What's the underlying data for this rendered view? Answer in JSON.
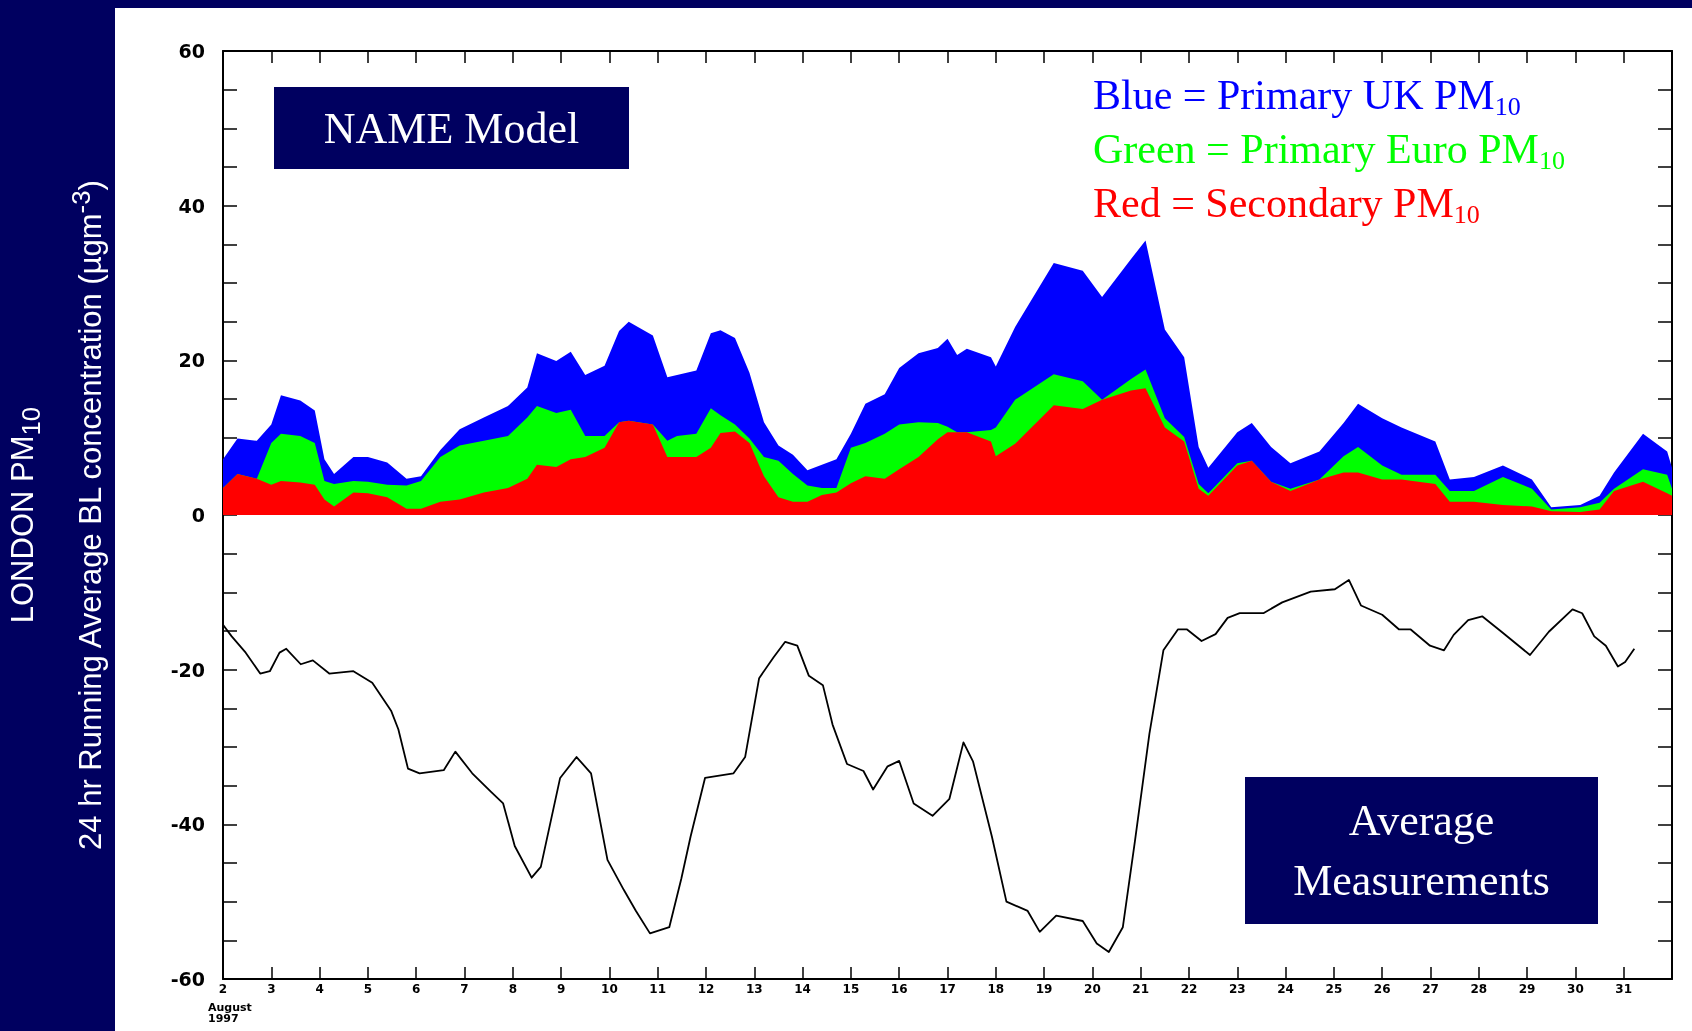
{
  "chart_data": {
    "type": "area",
    "stacked": true,
    "ylabel": "LONDON PM$_{10}$\n24 hr Running Average BL concentration (µgm$^{-3}$)",
    "annotations": [
      "NAME Model",
      "Average Measurements",
      "August\n1997"
    ],
    "x": [
      2.0,
      2.3,
      2.7,
      3.0,
      3.2,
      3.6,
      3.9,
      4.1,
      4.3,
      4.7,
      5.0,
      5.4,
      5.8,
      6.1,
      6.5,
      6.9,
      7.4,
      7.9,
      8.3,
      8.5,
      8.9,
      9.2,
      9.5,
      9.9,
      10.2,
      10.4,
      10.9,
      11.2,
      11.4,
      11.8,
      12.1,
      12.3,
      12.6,
      12.9,
      13.2,
      13.5,
      13.8,
      14.1,
      14.4,
      14.7,
      15.0,
      15.3,
      15.7,
      16.0,
      16.4,
      16.8,
      17.0,
      17.2,
      17.4,
      17.9,
      18.0,
      18.4,
      19.2,
      19.8,
      20.2,
      20.8,
      21.1,
      21.5,
      21.9,
      22.2,
      22.4,
      23.0,
      23.3,
      23.7,
      24.1,
      24.7,
      25.2,
      25.5,
      26.0,
      26.4,
      27.1,
      27.4,
      27.9,
      28.5,
      29.1,
      29.5,
      30.1,
      30.5,
      30.8,
      31.4,
      31.9,
      32.0
    ],
    "series": [
      {
        "name": "Red = Secondary PM$_{10}$",
        "color": "#ff0000",
        "values": [
          3.5,
          5.3,
          4.7,
          3.9,
          4.4,
          4.2,
          3.9,
          2.0,
          1.1,
          2.9,
          2.8,
          2.3,
          0.8,
          0.8,
          1.7,
          2.0,
          2.9,
          3.5,
          4.7,
          6.5,
          6.2,
          7.2,
          7.5,
          8.7,
          12.0,
          12.2,
          11.7,
          7.5,
          7.5,
          7.5,
          8.7,
          10.6,
          10.8,
          9.3,
          5.0,
          2.3,
          1.7,
          1.7,
          2.6,
          2.9,
          4.1,
          5.0,
          4.7,
          5.9,
          7.5,
          9.8,
          10.7,
          10.7,
          10.7,
          9.5,
          7.6,
          9.2,
          14.2,
          13.7,
          14.9,
          16.1,
          16.4,
          11.3,
          9.5,
          3.4,
          2.5,
          6.4,
          7.0,
          4.3,
          3.1,
          4.6,
          5.5,
          5.5,
          4.6,
          4.6,
          4.0,
          1.7,
          1.7,
          1.3,
          1.1,
          0.5,
          0.4,
          0.7,
          3.1,
          4.3,
          2.8,
          2.5
        ]
      },
      {
        "name": "Green = Primary Euro PM$_{10}$",
        "color": "#00ff00",
        "values": [
          0,
          0,
          0,
          5.4,
          6.1,
          6.0,
          5.4,
          2.4,
          2.9,
          1.5,
          1.5,
          1.6,
          3.0,
          3.6,
          5.8,
          7.0,
          6.7,
          6.7,
          7.9,
          7.6,
          7.0,
          6.4,
          2.7,
          1.5,
          0,
          0,
          0,
          2.1,
          2.7,
          3.0,
          5.1,
          2.3,
          0.9,
          0.6,
          2.5,
          4.7,
          3.6,
          2.1,
          0.9,
          0.6,
          4.6,
          4.3,
          5.8,
          5.8,
          4.5,
          2.1,
          0.7,
          0,
          0,
          1.5,
          3.7,
          5.7,
          4.0,
          3.6,
          0,
          1.5,
          2.4,
          1.2,
          0.6,
          0.6,
          0.3,
          0.3,
          0,
          0,
          0.3,
          0,
          2.1,
          3.3,
          1.8,
          0.6,
          1.2,
          1.4,
          1.4,
          3.6,
          2.3,
          0.2,
          0.6,
          0.9,
          0.3,
          1.6,
          2.4,
          0.9
        ]
      },
      {
        "name": "Blue = Primary UK PM$_{10}$",
        "color": "#0000ff",
        "values": [
          3.7,
          4.6,
          4.9,
          2.4,
          5.0,
          4.6,
          4.2,
          2.8,
          1.3,
          3.1,
          3.2,
          2.9,
          0.9,
          0.6,
          0.9,
          2.1,
          3.0,
          3.9,
          3.9,
          6.8,
          6.7,
          7.5,
          7.9,
          9.1,
          11.8,
          12.8,
          11.5,
          8.2,
          7.9,
          8.2,
          9.7,
          11.0,
          11.2,
          8.5,
          4.5,
          2.0,
          2.5,
          2.0,
          3.0,
          3.7,
          1.8,
          5.1,
          5.1,
          7.3,
          8.9,
          9.7,
          11.4,
          10.0,
          10.8,
          9.4,
          7.9,
          9.4,
          14.4,
          14.3,
          13.3,
          15.5,
          16.7,
          11.5,
          10.3,
          4.8,
          3.3,
          4.0,
          4.9,
          4.5,
          3.3,
          3.6,
          4.3,
          5.6,
          6.1,
          6.1,
          4.3,
          1.5,
          1.8,
          1.5,
          1.2,
          0.3,
          0.3,
          0.9,
          2.1,
          4.6,
          3.0,
          2.7
        ]
      },
      {
        "type": "line",
        "color": "#000000",
        "x": [
          2.0,
          2.18,
          2.47,
          2.77,
          2.97,
          3.17,
          3.31,
          3.61,
          3.86,
          4.2,
          4.7,
          5.09,
          5.48,
          5.63,
          5.83,
          6.07,
          6.57,
          6.81,
          7.16,
          7.55,
          7.8,
          8.04,
          8.39,
          8.58,
          8.98,
          9.32,
          9.62,
          9.96,
          10.3,
          10.55,
          10.84,
          11.24,
          11.49,
          11.68,
          11.98,
          12.57,
          12.81,
          13.1,
          13.4,
          13.64,
          13.89,
          14.13,
          14.42,
          14.62,
          14.92,
          15.26,
          15.46,
          15.76,
          16.0,
          16.3,
          16.69,
          17.04,
          17.33,
          17.53,
          17.92,
          18.22,
          18.66,
          18.91,
          19.25,
          19.8,
          20.09,
          20.34,
          20.63,
          20.88,
          21.18,
          21.47,
          21.77,
          21.96,
          22.26,
          22.55,
          22.8,
          23.05,
          23.54,
          23.93,
          24.52,
          25.02,
          25.31,
          25.56,
          26.0,
          26.35,
          26.59,
          26.99,
          27.28,
          27.48,
          27.78,
          28.07,
          28.47,
          29.06,
          29.45,
          29.94,
          30.14,
          30.39,
          30.63,
          30.88,
          31.03,
          31.22
        ],
        "values": [
          -14.2,
          -15.7,
          -17.8,
          -20.5,
          -20.2,
          -17.8,
          -17.3,
          -19.3,
          -18.8,
          -20.5,
          -20.2,
          -21.7,
          -25.3,
          -27.7,
          -32.8,
          -33.4,
          -33.0,
          -30.6,
          -33.4,
          -35.8,
          -37.3,
          -42.8,
          -46.9,
          -45.5,
          -34.0,
          -31.3,
          -33.4,
          -44.6,
          -48.5,
          -51.2,
          -54.1,
          -53.3,
          -47.0,
          -41.6,
          -34.0,
          -33.4,
          -31.3,
          -21.1,
          -18.4,
          -16.4,
          -16.9,
          -20.8,
          -22.0,
          -27.1,
          -32.2,
          -33.1,
          -35.5,
          -32.5,
          -31.8,
          -37.3,
          -38.9,
          -36.7,
          -29.4,
          -31.9,
          -41.6,
          -50.0,
          -51.2,
          -53.9,
          -51.8,
          -52.5,
          -55.4,
          -56.5,
          -53.3,
          -42.2,
          -28.3,
          -17.5,
          -14.8,
          -14.8,
          -16.3,
          -15.4,
          -13.3,
          -12.7,
          -12.7,
          -11.3,
          -9.9,
          -9.6,
          -8.4,
          -11.7,
          -12.9,
          -14.8,
          -14.8,
          -16.9,
          -17.5,
          -15.5,
          -13.6,
          -13.1,
          -15.1,
          -18.1,
          -15.1,
          -12.2,
          -12.7,
          -15.7,
          -16.9,
          -19.6,
          -19.0,
          -17.3
        ]
      }
    ],
    "xlim": [
      2,
      32
    ],
    "xticks": [
      2,
      3,
      4,
      5,
      6,
      7,
      8,
      9,
      10,
      11,
      12,
      13,
      14,
      15,
      16,
      17,
      18,
      19,
      20,
      21,
      22,
      23,
      24,
      25,
      26,
      27,
      28,
      29,
      30,
      31
    ],
    "ylim": [
      -60,
      60
    ],
    "yticks": [
      -60,
      {
        "value": -55,
        "label": null
      },
      {
        "value": -50,
        "label": null
      },
      {
        "value": -45,
        "label": null
      },
      -40,
      {
        "value": -35,
        "label": null
      },
      {
        "value": -30,
        "label": null
      },
      {
        "value": -25,
        "label": null
      },
      -20,
      {
        "value": -15,
        "label": null
      },
      {
        "value": -10,
        "label": null
      },
      {
        "value": -5,
        "label": null
      },
      0,
      {
        "value": 5,
        "label": null
      },
      {
        "value": 10,
        "label": null
      },
      {
        "value": 15,
        "label": null
      },
      20,
      {
        "value": 25,
        "label": null
      },
      {
        "value": 30,
        "label": null
      },
      {
        "value": 35,
        "label": null
      },
      40,
      {
        "value": 45,
        "label": null
      },
      {
        "value": 50,
        "label": null
      },
      {
        "value": 55,
        "label": null
      },
      60
    ],
    "legend": "top right",
    "marker": "none",
    "grid": false
  }
}
